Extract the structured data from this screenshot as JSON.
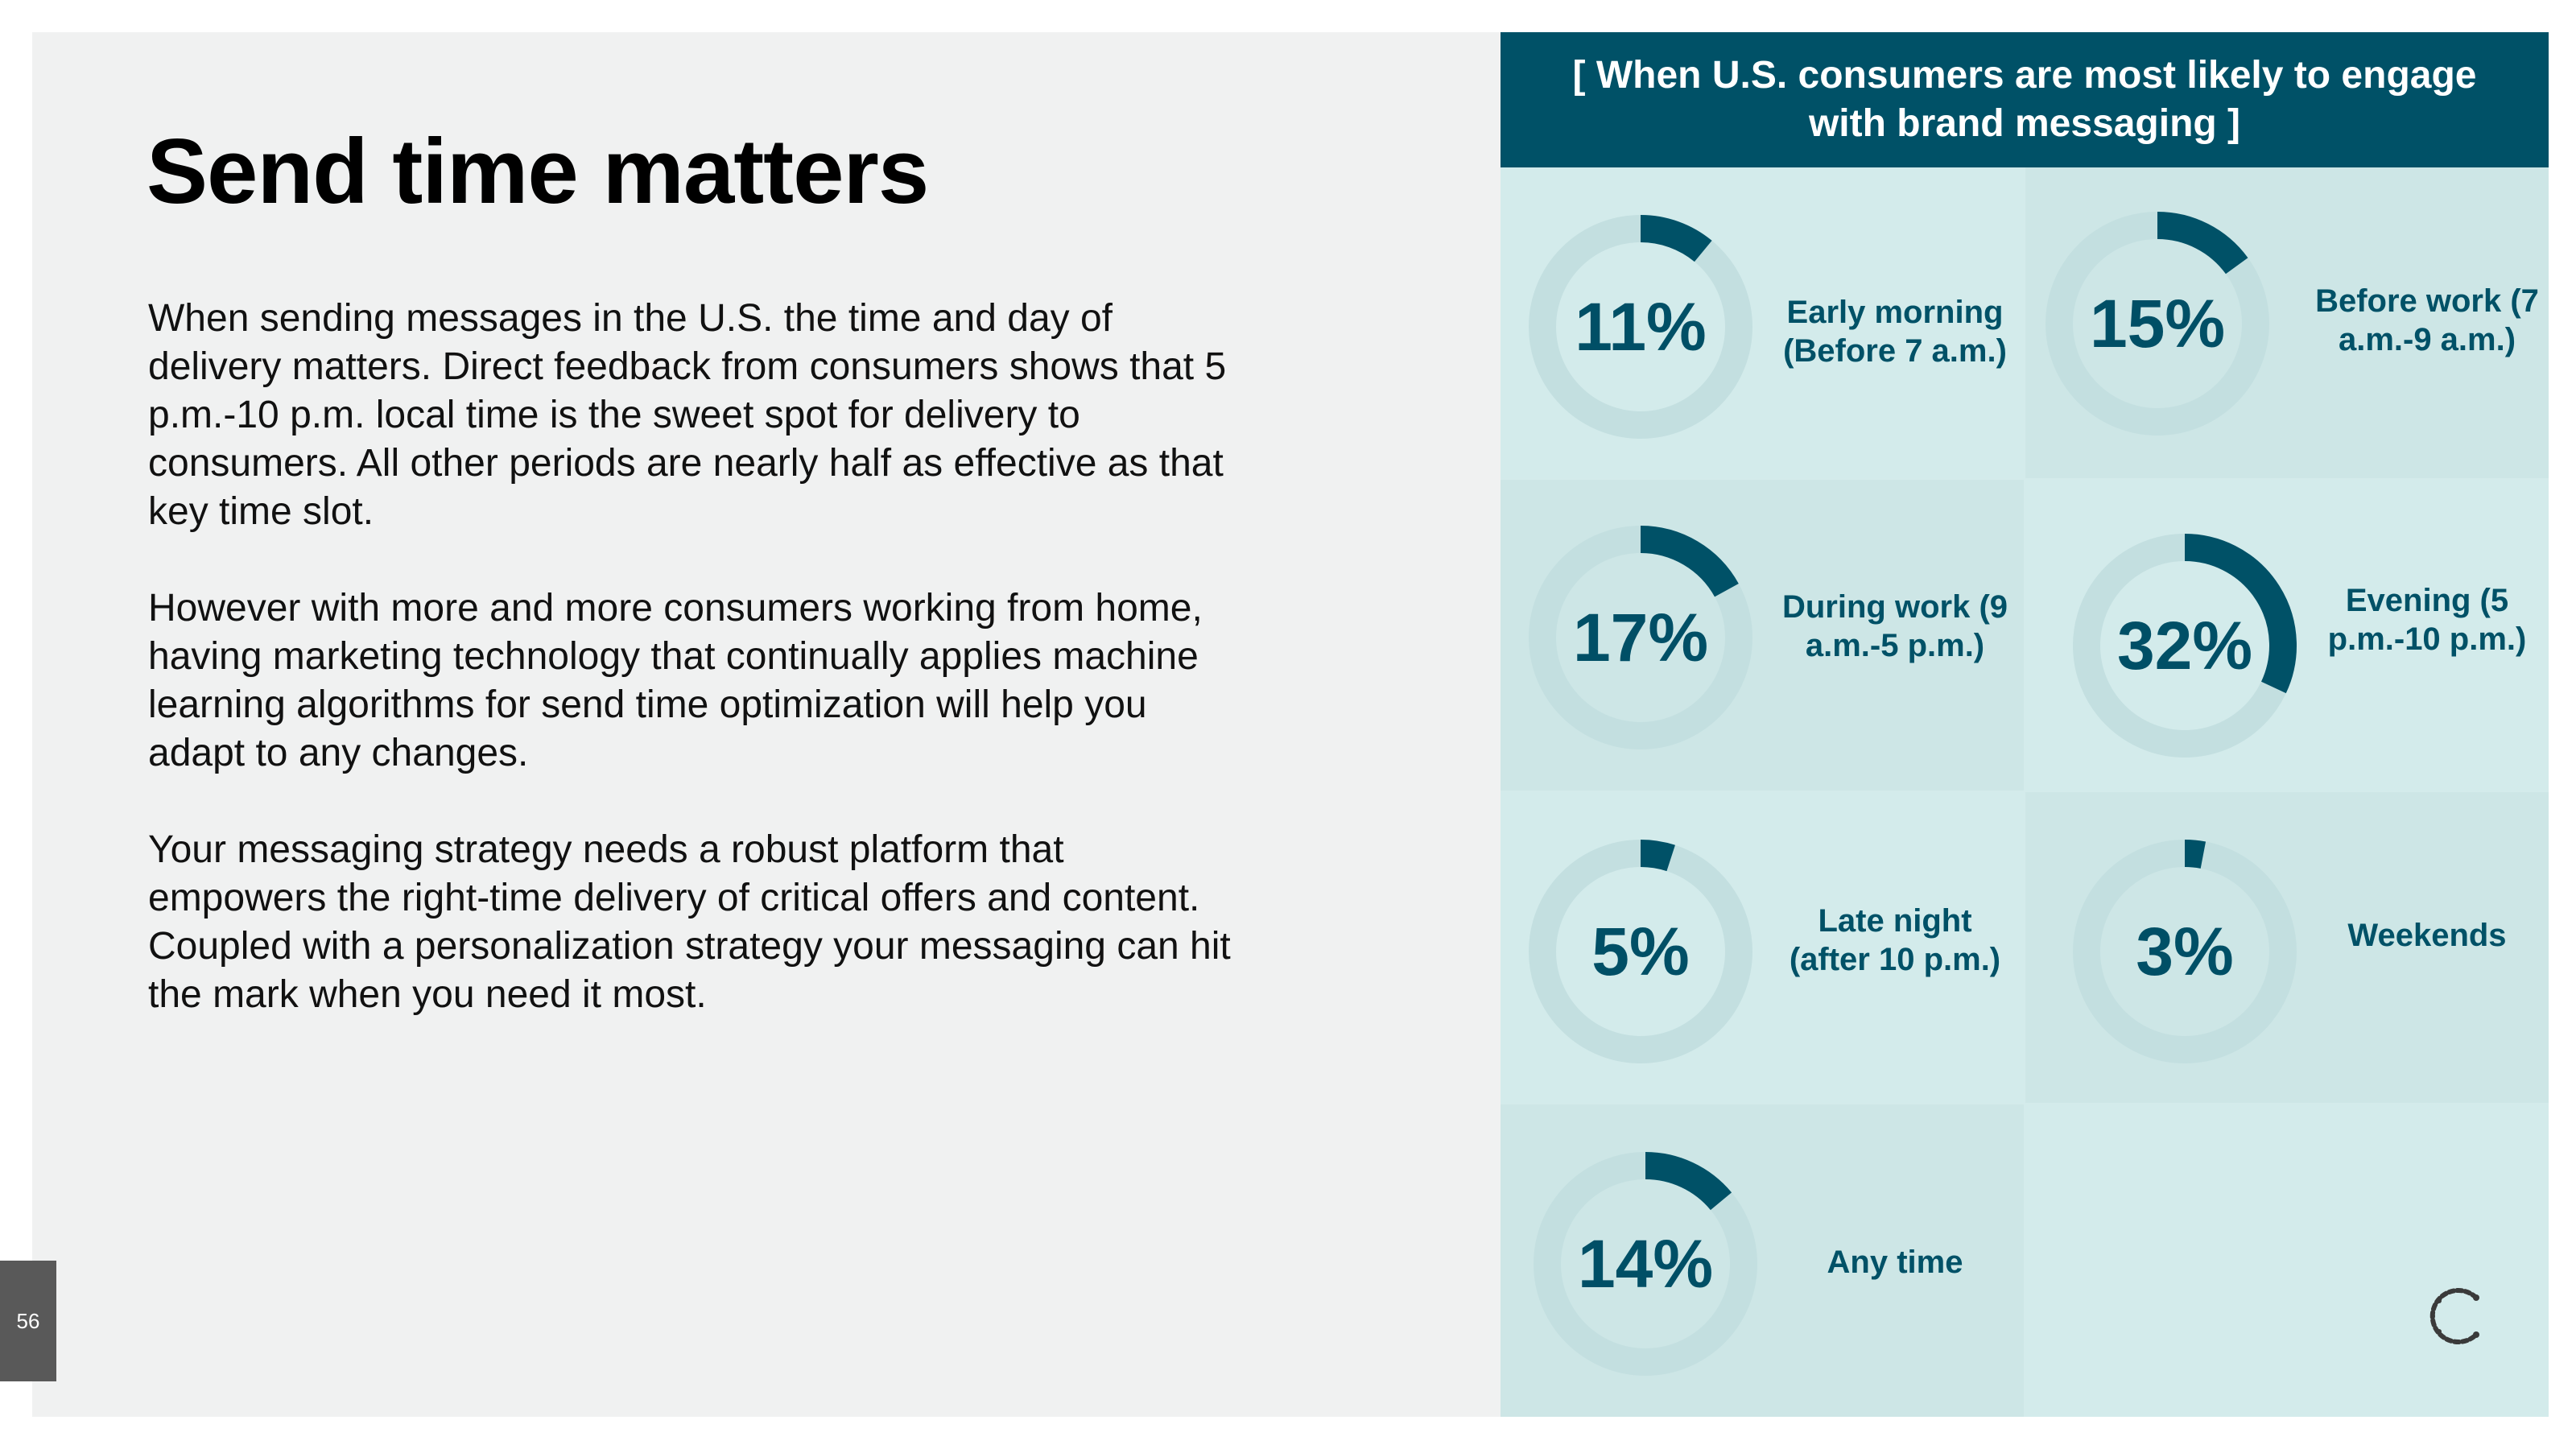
{
  "slide": {
    "title": "Send time matters",
    "paragraphs": [
      "When sending messages in the U.S. the time and day of delivery matters. Direct feedback from consumers shows that 5 p.m.-10 p.m. local time is the sweet spot for delivery to consumers. All other periods are nearly half as effective as that key time slot.",
      "However with more and more consumers working from home, having marketing technology that continually applies machine learning algorithms for send time optimization will help you adapt to any changes.",
      "Your messaging strategy needs a robust platform that empowers the right-time delivery of critical offers and content. Coupled with a personalization strategy your messaging can hit the mark when you need it most."
    ],
    "page_number": "56"
  },
  "panel": {
    "header": "[ When U.S. consumers are most likely to engage with brand messaging ]"
  },
  "colors": {
    "accent": "#005167",
    "track": "#c3dfe0",
    "panel_bg": "#d4ebeb"
  },
  "chart_data": {
    "type": "donut",
    "items": [
      {
        "label": "Early morning (Before 7 a.m.)",
        "value": 11,
        "display": "11%"
      },
      {
        "label": "Before work (7 a.m.-9 a.m.)",
        "value": 15,
        "display": "15%"
      },
      {
        "label": "During work (9 a.m.-5 p.m.)",
        "value": 17,
        "display": "17%"
      },
      {
        "label": "Evening (5 p.m.-10 p.m.)",
        "value": 32,
        "display": "32%"
      },
      {
        "label": "Late night (after 10 p.m.)",
        "value": 5,
        "display": "5%"
      },
      {
        "label": "Weekends",
        "value": 3,
        "display": "3%"
      },
      {
        "label": "Any time",
        "value": 14,
        "display": "14%"
      }
    ]
  },
  "logo": {
    "icon": "brand-logo-c-icon"
  }
}
